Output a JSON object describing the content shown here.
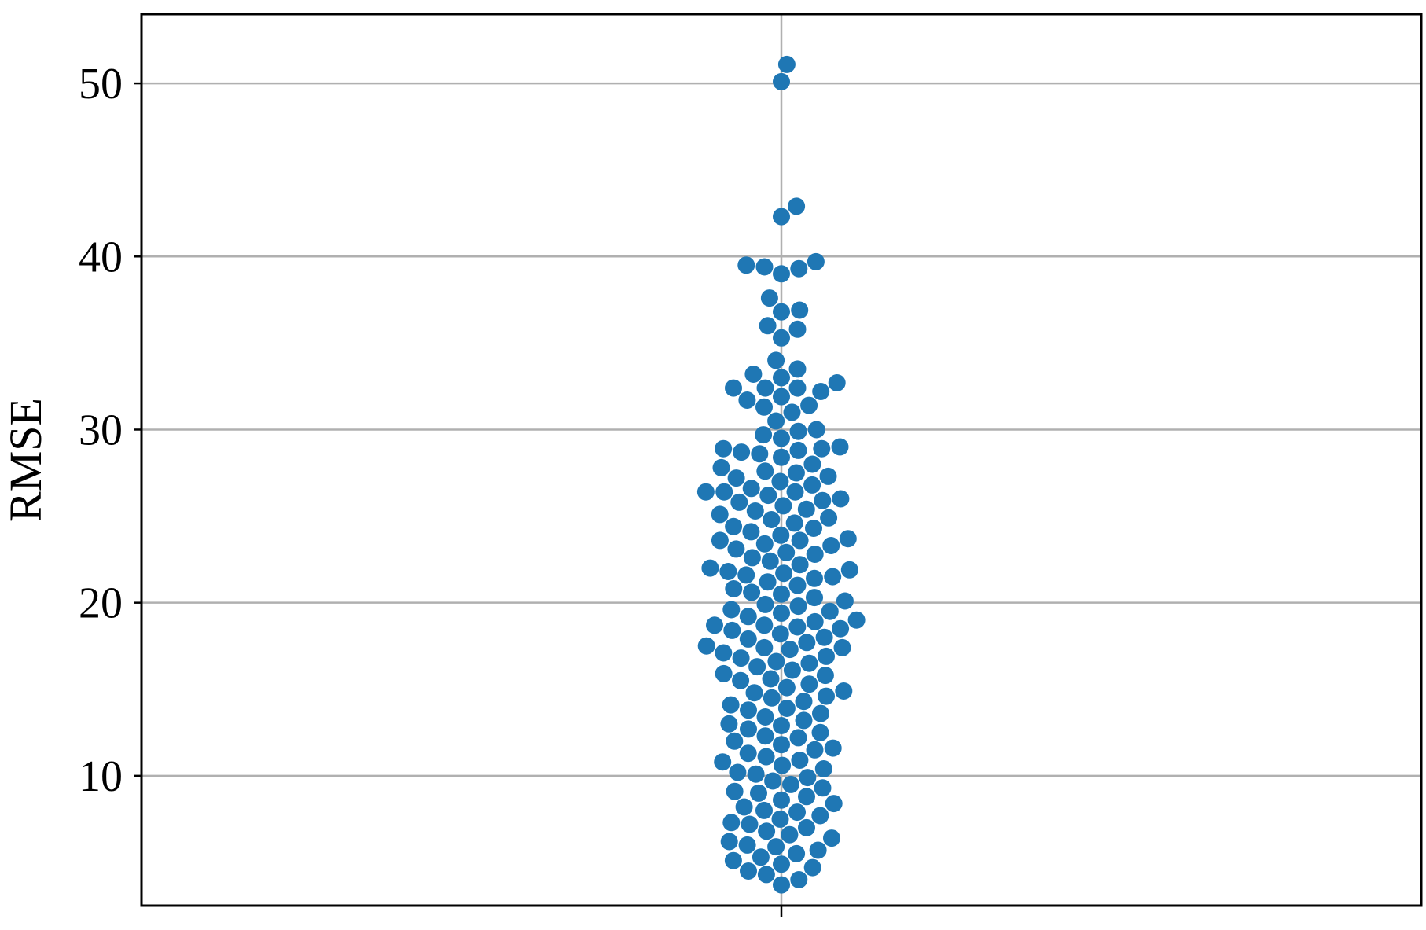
{
  "chart_data": {
    "type": "scatter",
    "subtype": "swarm",
    "title": "",
    "xlabel": "",
    "ylabel": "RMSE",
    "ylim": [
      2.5,
      54
    ],
    "yticks": [
      10,
      20,
      30,
      40,
      50
    ],
    "ytick_labels": [
      "10",
      "20",
      "30",
      "40",
      "50"
    ],
    "grid": true,
    "marker_color": "#1f77b4",
    "series": [
      {
        "values": [
          51.1,
          50.1,
          42.9,
          42.3,
          39.7,
          39.5,
          39.4,
          39.3,
          39.0,
          37.6,
          36.9,
          36.8,
          36.0,
          35.8,
          35.3,
          34.0,
          33.5,
          33.2,
          33.0,
          32.7,
          32.4,
          32.4,
          32.4,
          32.2,
          31.9,
          31.7,
          31.4,
          31.3,
          31.0,
          30.5,
          30.0,
          29.9,
          29.7,
          29.5,
          29.0,
          28.9,
          28.9,
          28.8,
          28.7,
          28.6,
          28.4,
          28.0,
          27.8,
          27.6,
          27.5,
          27.3,
          27.2,
          27.0,
          26.8,
          26.6,
          26.4,
          26.4,
          26.4,
          26.2,
          26.0,
          25.9,
          25.8,
          25.6,
          25.4,
          25.3,
          25.1,
          24.9,
          24.8,
          24.6,
          24.4,
          24.3,
          24.1,
          23.9,
          23.7,
          23.6,
          23.6,
          23.4,
          23.3,
          23.1,
          22.9,
          22.8,
          22.6,
          22.4,
          22.2,
          22.0,
          21.9,
          21.8,
          21.7,
          21.6,
          21.5,
          21.4,
          21.2,
          21.0,
          20.8,
          20.6,
          20.5,
          20.3,
          20.1,
          19.9,
          19.8,
          19.6,
          19.5,
          19.4,
          19.2,
          19.0,
          18.9,
          18.7,
          18.7,
          18.6,
          18.5,
          18.4,
          18.2,
          18.0,
          17.9,
          17.7,
          17.5,
          17.4,
          17.4,
          17.3,
          17.1,
          16.9,
          16.8,
          16.6,
          16.5,
          16.3,
          16.1,
          15.9,
          15.8,
          15.6,
          15.5,
          15.3,
          15.1,
          14.9,
          14.8,
          14.6,
          14.5,
          14.3,
          14.1,
          13.9,
          13.8,
          13.6,
          13.4,
          13.2,
          13.0,
          12.9,
          12.7,
          12.5,
          12.3,
          12.2,
          12.0,
          11.8,
          11.6,
          11.5,
          11.3,
          11.1,
          10.9,
          10.8,
          10.6,
          10.4,
          10.2,
          10.1,
          9.9,
          9.7,
          9.5,
          9.3,
          9.1,
          9.0,
          8.8,
          8.6,
          8.4,
          8.2,
          8.0,
          7.9,
          7.7,
          7.5,
          7.3,
          7.2,
          7.0,
          6.8,
          6.6,
          6.4,
          6.2,
          6.0,
          5.9,
          5.7,
          5.5,
          5.3,
          5.1,
          4.9,
          4.7,
          4.5,
          4.3,
          4.0,
          3.7
        ]
      }
    ]
  }
}
